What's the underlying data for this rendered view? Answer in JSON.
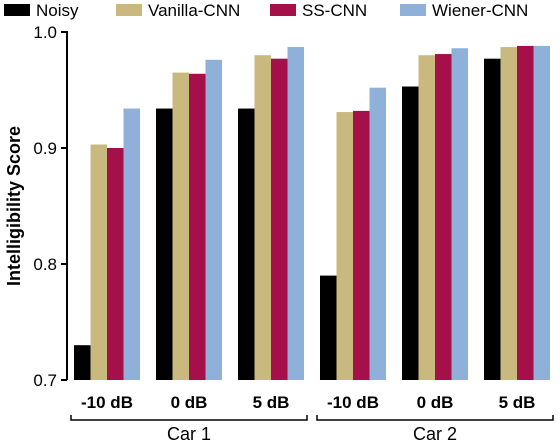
{
  "chart_data": {
    "type": "bar",
    "ylabel": "Intelligibility Score",
    "ylim": [
      0.7,
      1.0
    ],
    "yticks": [
      "0.7",
      "0.8",
      "0.9",
      "1.0"
    ],
    "ytick_values": [
      0.7,
      0.8,
      0.9,
      1.0
    ],
    "categories": [
      "-10 dB",
      "0 dB",
      "5 dB",
      "-10 dB",
      "0 dB",
      "5 dB"
    ],
    "groups": [
      {
        "label": "Car 1",
        "categories": [
          "-10 dB",
          "0 dB",
          "5 dB"
        ]
      },
      {
        "label": "Car 2",
        "categories": [
          "-10 dB",
          "0 dB",
          "5 dB"
        ]
      }
    ],
    "legend_position": "top",
    "grid": false,
    "series": [
      {
        "name": "Noisy",
        "color": "#000000",
        "values": [
          0.73,
          0.934,
          0.934,
          0.79,
          0.953,
          0.977
        ]
      },
      {
        "name": "Vanilla-CNN",
        "color": "#c9b97e",
        "values": [
          0.903,
          0.965,
          0.98,
          0.931,
          0.98,
          0.987
        ]
      },
      {
        "name": "SS-CNN",
        "color": "#a6104a",
        "values": [
          0.9,
          0.964,
          0.977,
          0.932,
          0.981,
          0.988
        ]
      },
      {
        "name": "Wiener-CNN",
        "color": "#8fb0d8",
        "values": [
          0.934,
          0.976,
          0.987,
          0.952,
          0.986,
          0.988
        ]
      }
    ]
  }
}
